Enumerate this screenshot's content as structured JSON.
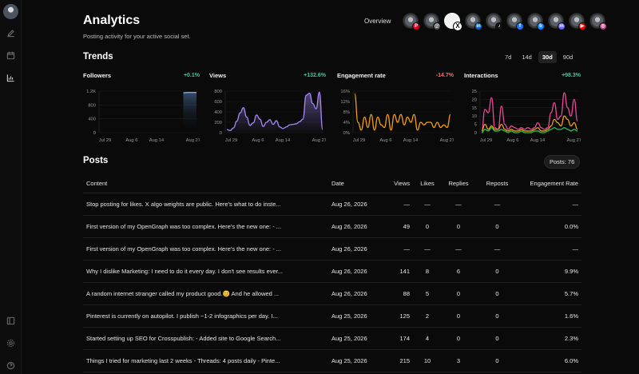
{
  "header": {
    "title": "Analytics",
    "subtitle": "Posting activity for your active social set.",
    "overview_label": "Overview"
  },
  "platforms": [
    {
      "icon": "pinterest-icon",
      "glyph": "P",
      "color": "#e60023",
      "selected": false
    },
    {
      "icon": "threads-icon",
      "glyph": "@",
      "color": "#555555",
      "selected": false
    },
    {
      "icon": "x-icon",
      "glyph": "X",
      "color": "#000000",
      "selected": true
    },
    {
      "icon": "linkedin-icon",
      "glyph": "in",
      "color": "#0a66c2",
      "selected": false
    },
    {
      "icon": "tiktok-icon",
      "glyph": "♪",
      "color": "#111111",
      "selected": false
    },
    {
      "icon": "facebook-icon",
      "glyph": "f",
      "color": "#1877f2",
      "selected": false
    },
    {
      "icon": "bluesky-icon",
      "glyph": "b",
      "color": "#1185fe",
      "selected": false
    },
    {
      "icon": "mastodon-icon",
      "glyph": "m",
      "color": "#6364ff",
      "selected": false
    },
    {
      "icon": "youtube-icon",
      "glyph": "▶",
      "color": "#ff0000",
      "selected": false
    },
    {
      "icon": "instagram-icon",
      "glyph": "◎",
      "color": "#c13584",
      "selected": false
    }
  ],
  "trends": {
    "title": "Trends",
    "ranges": [
      {
        "label": "7d",
        "active": false
      },
      {
        "label": "14d",
        "active": false
      },
      {
        "label": "30d",
        "active": true
      },
      {
        "label": "90d",
        "active": false
      }
    ]
  },
  "charts": [
    {
      "title": "Followers",
      "change": "+0.1%",
      "direction": "up"
    },
    {
      "title": "Views",
      "change": "+132.6%",
      "direction": "up"
    },
    {
      "title": "Engagement rate",
      "change": "-14.7%",
      "direction": "down"
    },
    {
      "title": "Interactions",
      "change": "+98.3%",
      "direction": "up"
    }
  ],
  "chart_data": [
    {
      "type": "area",
      "title": "Followers",
      "yticks": [
        "1.2K",
        "800",
        "400",
        "0"
      ],
      "xticks": [
        "Jul 29",
        "Aug 6",
        "Aug 14",
        "Aug 27"
      ],
      "ylim": [
        0,
        1200
      ],
      "series": [
        {
          "color": "#7aa7e0",
          "values": [
            0,
            0,
            0,
            0,
            0,
            0,
            0,
            0,
            0,
            0,
            0,
            0,
            0,
            0,
            0,
            0,
            0,
            0,
            0,
            0,
            0,
            0,
            0,
            0,
            0,
            1150,
            1160,
            1160,
            1162,
            1162
          ]
        }
      ]
    },
    {
      "type": "area",
      "title": "Views",
      "yticks": [
        "800",
        "600",
        "400",
        "200",
        "0"
      ],
      "xticks": [
        "Jul 29",
        "Aug 6",
        "Aug 14",
        "Aug 27"
      ],
      "ylim": [
        0,
        800
      ],
      "series": [
        {
          "color": "#a78bfa",
          "values": [
            60,
            40,
            90,
            220,
            380,
            480,
            300,
            140,
            190,
            340,
            260,
            120,
            200,
            250,
            160,
            230,
            110,
            80,
            110,
            150,
            160,
            170,
            210,
            260,
            720,
            760,
            560,
            460,
            780,
            60
          ]
        }
      ]
    },
    {
      "type": "line",
      "title": "Engagement rate",
      "yticks": [
        "16%",
        "12%",
        "8%",
        "4%",
        "0%"
      ],
      "xticks": [
        "Jul 29",
        "Aug 6",
        "Aug 14",
        "Aug 27"
      ],
      "ylim": [
        0,
        16
      ],
      "series": [
        {
          "color": "#f59e0b",
          "values": [
            15,
            4,
            1,
            6,
            2,
            7,
            1,
            6,
            3,
            2,
            7,
            1,
            7,
            4,
            7,
            3,
            6,
            4,
            7,
            1,
            4,
            3,
            4,
            4,
            2,
            4,
            2,
            3,
            2,
            7
          ]
        }
      ]
    },
    {
      "type": "line",
      "title": "Interactions",
      "yticks": [
        "25",
        "20",
        "15",
        "10",
        "5",
        "0"
      ],
      "xticks": [
        "Jul 29",
        "Aug 6",
        "Aug 14",
        "Aug 27"
      ],
      "ylim": [
        0,
        25
      ],
      "series": [
        {
          "color": "#ec4899",
          "values": [
            1,
            14,
            12,
            21,
            3,
            2,
            16,
            5,
            2,
            4,
            3,
            2,
            3,
            2,
            3,
            2,
            3,
            6,
            3,
            2,
            3,
            12,
            18,
            8,
            10,
            24,
            15,
            10,
            20,
            7
          ]
        },
        {
          "color": "#f59e0b",
          "values": [
            1,
            5,
            2,
            4,
            2,
            2,
            5,
            2,
            1,
            2,
            1,
            1,
            2,
            1,
            1,
            1,
            2,
            3,
            1,
            1,
            2,
            4,
            8,
            6,
            4,
            10,
            8,
            4,
            6,
            2
          ]
        },
        {
          "color": "#22c55e",
          "values": [
            0,
            2,
            1,
            3,
            1,
            1,
            2,
            1,
            0,
            1,
            0,
            0,
            1,
            0,
            0,
            0,
            1,
            1,
            0,
            0,
            1,
            2,
            3,
            2,
            2,
            3,
            2,
            1,
            2,
            1
          ]
        }
      ]
    }
  ],
  "posts": {
    "title": "Posts",
    "count_label": "Posts: 76",
    "columns": [
      "Content",
      "Date",
      "Views",
      "Likes",
      "Replies",
      "Reposts",
      "Engagement Rate"
    ],
    "rows": [
      [
        "Stop posting for likes. X algo weights are public. Here's what to do inste...",
        "Aug 26, 2026",
        "—",
        "—",
        "—",
        "—",
        "—"
      ],
      [
        "First version of my OpenGraph was too complex. Here's the new one: - ...",
        "Aug 26, 2026",
        "49",
        "0",
        "0",
        "0",
        "0.0%"
      ],
      [
        "First version of my OpenGraph was too complex. Here's the new one: - ...",
        "Aug 26, 2026",
        "—",
        "—",
        "—",
        "—",
        "—"
      ],
      [
        "Why I dislike Marketing: I need to do it every day. I don't see results ever...",
        "Aug 26, 2026",
        "141",
        "8",
        "6",
        "0",
        "9.9%"
      ],
      [
        "A random internet stranger called my product good.😊 And he allowed ...",
        "Aug 26, 2026",
        "88",
        "5",
        "0",
        "0",
        "5.7%"
      ],
      [
        "Pinterest is currently on autopilot. I publish ~1-2 infographics per day. I...",
        "Aug 25, 2026",
        "125",
        "2",
        "0",
        "0",
        "1.6%"
      ],
      [
        "Started setting up SEO for Crosspublish: - Added site to Google Search...",
        "Aug 25, 2026",
        "174",
        "4",
        "0",
        "0",
        "2.3%"
      ],
      [
        "Things I tried for marketing last 2 weeks - Threads: 4 posts daily - Pinte...",
        "Aug 25, 2026",
        "215",
        "10",
        "3",
        "0",
        "6.0%"
      ]
    ]
  }
}
